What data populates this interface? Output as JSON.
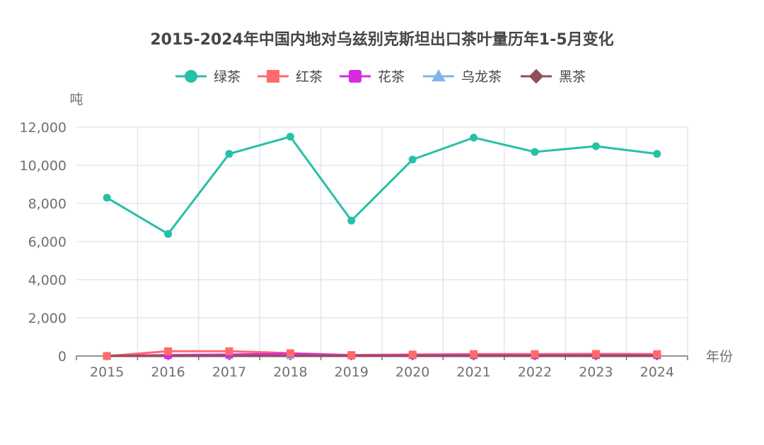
{
  "chart_data": {
    "type": "line",
    "title": "2015-2024年中国内地对乌兹别克斯坦出口茶叶量历年1-5月变化",
    "xlabel": "年份",
    "ylabel": "吨",
    "categories": [
      "2015",
      "2016",
      "2017",
      "2018",
      "2019",
      "2020",
      "2021",
      "2022",
      "2023",
      "2024"
    ],
    "ylim": [
      0,
      12000
    ],
    "yticks": [
      0,
      2000,
      4000,
      6000,
      8000,
      10000,
      12000
    ],
    "ytick_labels": [
      "0",
      "2,000",
      "4,000",
      "6,000",
      "8,000",
      "10,000",
      "12,000"
    ],
    "grid": true,
    "legend_position": "top-center",
    "series": [
      {
        "name": "绿茶",
        "color": "#26c0a6",
        "marker": "circle",
        "values": [
          8300,
          6400,
          10600,
          11500,
          7100,
          10300,
          11450,
          10700,
          11000,
          10600
        ]
      },
      {
        "name": "红茶",
        "color": "#ff6b6b",
        "marker": "square",
        "values": [
          0,
          250,
          250,
          150,
          50,
          80,
          100,
          100,
          110,
          100
        ]
      },
      {
        "name": "花茶",
        "color": "#d52ce0",
        "marker": "roundrect",
        "values": [
          0,
          50,
          80,
          120,
          30,
          40,
          50,
          40,
          50,
          40
        ]
      },
      {
        "name": "乌龙茶",
        "color": "#7fb4e8",
        "marker": "triangle",
        "values": [
          0,
          0,
          0,
          0,
          0,
          0,
          0,
          0,
          0,
          0
        ]
      },
      {
        "name": "黑茶",
        "color": "#8e4f55",
        "marker": "diamond",
        "values": [
          0,
          0,
          0,
          0,
          0,
          0,
          0,
          0,
          0,
          0
        ]
      }
    ]
  }
}
